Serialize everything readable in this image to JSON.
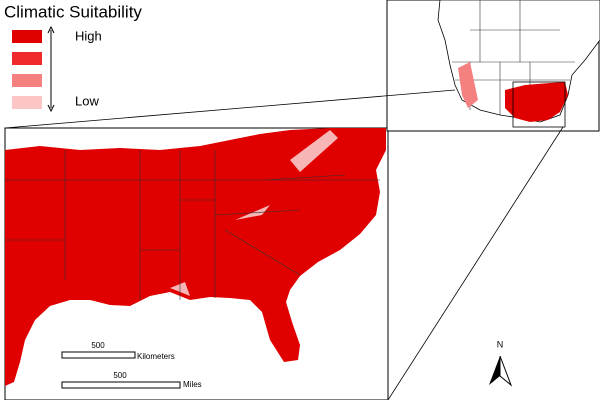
{
  "legend": {
    "title": "Climatic Suitability",
    "high": "High",
    "low": "Low",
    "colors": [
      "#e00000",
      "#f02a2a",
      "#f48080",
      "#fcc6c6"
    ]
  },
  "scale_bars": [
    {
      "value": "500",
      "unit": "Kilometers"
    },
    {
      "value": "500",
      "unit": "Miles"
    }
  ],
  "north_arrow": "N"
}
